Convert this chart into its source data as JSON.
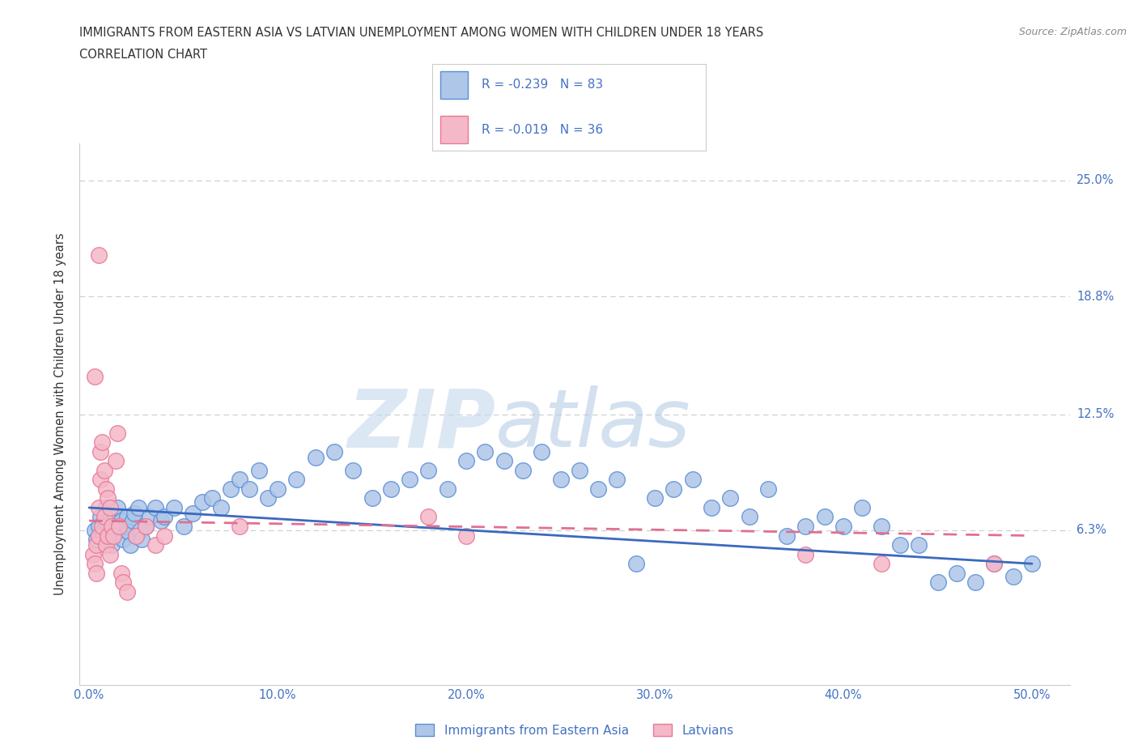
{
  "title_line1": "IMMIGRANTS FROM EASTERN ASIA VS LATVIAN UNEMPLOYMENT AMONG WOMEN WITH CHILDREN UNDER 18 YEARS",
  "title_line2": "CORRELATION CHART",
  "source": "Source: ZipAtlas.com",
  "xlabel_ticks": [
    "0.0%",
    "10.0%",
    "20.0%",
    "30.0%",
    "40.0%",
    "50.0%"
  ],
  "xlabel_tick_vals": [
    0.0,
    10.0,
    20.0,
    30.0,
    40.0,
    50.0
  ],
  "ylabel": "Unemployment Among Women with Children Under 18 years",
  "ytick_vals": [
    0.0,
    6.3,
    12.5,
    18.8,
    25.0
  ],
  "ytick_labels": [
    "",
    "6.3%",
    "12.5%",
    "18.8%",
    "25.0%"
  ],
  "xlim": [
    -0.5,
    52.0
  ],
  "ylim": [
    -2.0,
    27.0
  ],
  "watermark_zip": "ZIP",
  "watermark_atlas": "atlas",
  "legend_label1": "Immigrants from Eastern Asia",
  "legend_label2": "Latvians",
  "r1": "-0.239",
  "n1": "83",
  "r2": "-0.019",
  "n2": "36",
  "color_blue_fill": "#aec6e8",
  "color_pink_fill": "#f4b8c8",
  "color_blue_edge": "#5b8ed6",
  "color_pink_edge": "#e87898",
  "color_blue_line": "#3a6abf",
  "color_pink_line": "#e07090",
  "color_text_blue": "#4472c4",
  "color_grid": "#cccccc",
  "blue_scatter_x": [
    0.3,
    0.4,
    0.5,
    0.6,
    0.7,
    0.8,
    0.9,
    1.0,
    1.1,
    1.2,
    1.3,
    1.4,
    1.5,
    1.6,
    1.7,
    1.8,
    1.9,
    2.0,
    2.1,
    2.2,
    2.3,
    2.4,
    2.5,
    2.6,
    2.7,
    2.8,
    3.0,
    3.2,
    3.5,
    3.8,
    4.0,
    4.5,
    5.0,
    5.5,
    6.0,
    6.5,
    7.0,
    7.5,
    8.0,
    8.5,
    9.0,
    9.5,
    10.0,
    11.0,
    12.0,
    13.0,
    14.0,
    15.0,
    16.0,
    17.0,
    18.0,
    19.0,
    20.0,
    21.0,
    22.0,
    23.0,
    24.0,
    25.0,
    26.0,
    27.0,
    28.0,
    29.0,
    30.0,
    31.0,
    32.0,
    33.0,
    34.0,
    35.0,
    36.0,
    37.0,
    38.0,
    39.0,
    40.0,
    41.0,
    42.0,
    43.0,
    44.0,
    45.0,
    46.0,
    47.0,
    48.0,
    49.0,
    50.0
  ],
  "blue_scatter_y": [
    6.3,
    5.8,
    6.5,
    7.0,
    6.2,
    6.8,
    7.5,
    6.0,
    7.2,
    5.5,
    6.8,
    7.0,
    7.5,
    6.3,
    6.8,
    5.8,
    6.5,
    7.0,
    6.2,
    5.5,
    6.8,
    7.2,
    6.0,
    7.5,
    6.3,
    5.8,
    6.5,
    7.0,
    7.5,
    6.8,
    7.0,
    7.5,
    6.5,
    7.2,
    7.8,
    8.0,
    7.5,
    8.5,
    9.0,
    8.5,
    9.5,
    8.0,
    8.5,
    9.0,
    10.2,
    10.5,
    9.5,
    8.0,
    8.5,
    9.0,
    9.5,
    8.5,
    10.0,
    10.5,
    10.0,
    9.5,
    10.5,
    9.0,
    9.5,
    8.5,
    9.0,
    4.5,
    8.0,
    8.5,
    9.0,
    7.5,
    8.0,
    7.0,
    8.5,
    6.0,
    6.5,
    7.0,
    6.5,
    7.5,
    6.5,
    5.5,
    5.5,
    3.5,
    4.0,
    3.5,
    4.5,
    3.8,
    4.5
  ],
  "pink_scatter_x": [
    0.2,
    0.3,
    0.4,
    0.4,
    0.5,
    0.5,
    0.6,
    0.6,
    0.7,
    0.7,
    0.8,
    0.8,
    0.9,
    0.9,
    1.0,
    1.0,
    1.1,
    1.1,
    1.2,
    1.3,
    1.4,
    1.5,
    1.6,
    1.7,
    1.8,
    2.0,
    2.5,
    3.0,
    3.5,
    4.0,
    8.0,
    18.0,
    20.0,
    38.0,
    42.0,
    48.0
  ],
  "pink_scatter_y": [
    5.0,
    4.5,
    5.5,
    4.0,
    7.5,
    6.0,
    10.5,
    9.0,
    11.0,
    6.5,
    9.5,
    7.0,
    8.5,
    5.5,
    8.0,
    6.0,
    7.5,
    5.0,
    6.5,
    6.0,
    10.0,
    11.5,
    6.5,
    4.0,
    3.5,
    3.0,
    6.0,
    6.5,
    5.5,
    6.0,
    6.5,
    7.0,
    6.0,
    5.0,
    4.5,
    4.5
  ],
  "pink_outlier1_x": 0.5,
  "pink_outlier1_y": 21.0,
  "pink_outlier2_x": 0.3,
  "pink_outlier2_y": 14.5,
  "blue_line_x0": 0.0,
  "blue_line_x1": 50.0,
  "blue_line_y0": 7.5,
  "blue_line_y1": 4.5,
  "pink_line_x0": 0.0,
  "pink_line_x1": 50.0,
  "pink_line_y0": 6.8,
  "pink_line_y1": 6.0
}
